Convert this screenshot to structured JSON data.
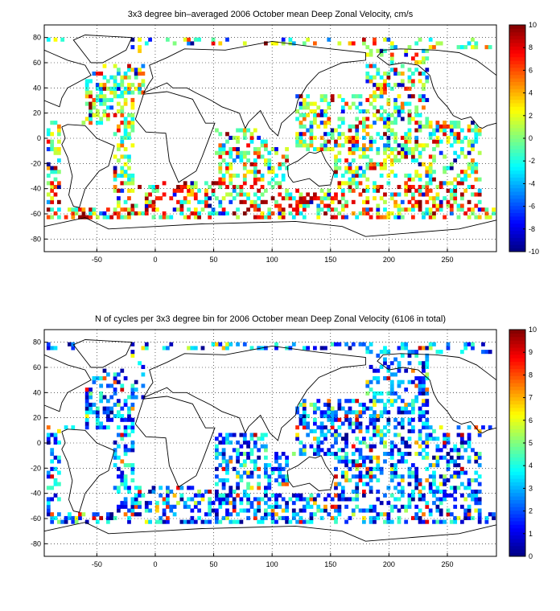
{
  "chart_data": [
    {
      "type": "heatmap",
      "title": "3x3 degree bin–averaged 2006 October mean Deep Zonal Velocity, cm/s",
      "xlabel": "",
      "ylabel": "",
      "xlim": [
        -95,
        292
      ],
      "ylim": [
        -90,
        90
      ],
      "x_ticks": [
        "-50",
        "0",
        "50",
        "100",
        "150",
        "200",
        "250"
      ],
      "y_ticks": [
        "80",
        "60",
        "40",
        "20",
        "0",
        "-20",
        "-40",
        "-60",
        "-80"
      ],
      "colorbar": {
        "min": -10,
        "max": 10,
        "colormap": "jet",
        "ticks": [
          "10",
          "8",
          "6",
          "4",
          "2",
          "0",
          "-2",
          "-4",
          "-6",
          "-8",
          "-10"
        ]
      },
      "grid": true,
      "bin_size_deg": 3
    },
    {
      "type": "heatmap",
      "title": "N of cycles per 3x3 degree bin for 2006 October mean Deep Zonal Velocity (6106 in total)",
      "xlabel": "",
      "ylabel": "",
      "xlim": [
        -95,
        292
      ],
      "ylim": [
        -90,
        90
      ],
      "x_ticks": [
        "-50",
        "0",
        "50",
        "100",
        "150",
        "200",
        "250"
      ],
      "y_ticks": [
        "80",
        "60",
        "40",
        "20",
        "0",
        "-20",
        "-40",
        "-60",
        "-80"
      ],
      "colorbar": {
        "min": 0,
        "max": 10,
        "colormap": "jet",
        "ticks": [
          "10",
          "9",
          "8",
          "7",
          "6",
          "5",
          "4",
          "3",
          "2",
          "1",
          "0"
        ]
      },
      "grid": true,
      "bin_size_deg": 3
    }
  ]
}
